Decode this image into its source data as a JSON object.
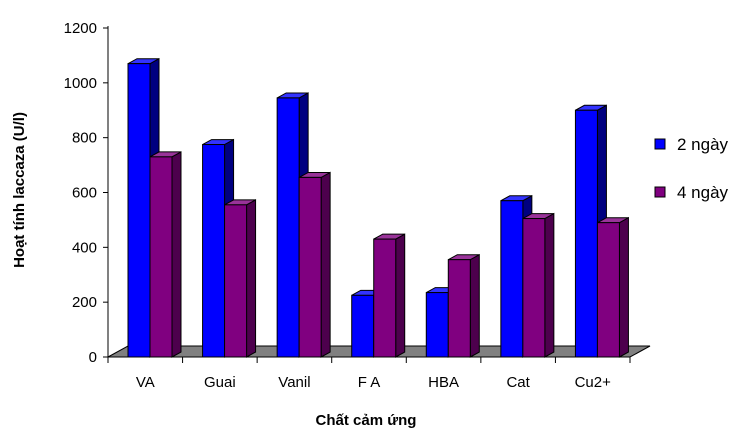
{
  "chart_data": {
    "type": "bar",
    "title": "",
    "xlabel": "Chất cảm ứng",
    "ylabel": "Hoạt tính laccaza (U/l)",
    "categories": [
      "VA",
      "Guai",
      "Vanil",
      "F A",
      "HBA",
      "Cat",
      "Cu2+"
    ],
    "series": [
      {
        "name": "2 ngày",
        "values": [
          1070,
          775,
          945,
          225,
          235,
          570,
          900
        ],
        "color": "#0000FF",
        "side_color": "#000080",
        "top_color": "#3333FF"
      },
      {
        "name": "4 ngày",
        "values": [
          730,
          555,
          655,
          430,
          355,
          505,
          490
        ],
        "color": "#800080",
        "side_color": "#4D004D",
        "top_color": "#993399"
      }
    ],
    "ylim": [
      0,
      1200
    ],
    "yticks": [
      0,
      200,
      400,
      600,
      800,
      1000,
      1200
    ],
    "grid": false,
    "legend_position": "right",
    "style": "3d-clustered-column"
  }
}
